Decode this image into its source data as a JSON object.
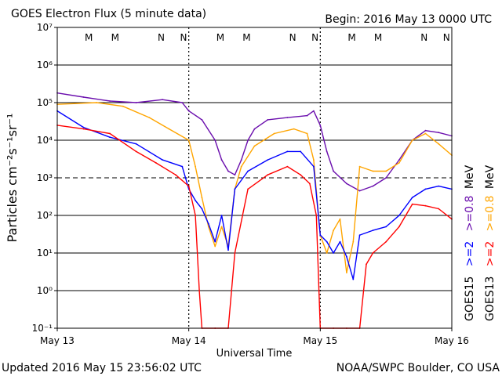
{
  "header": {
    "title": "GOES Electron Flux (5 minute data)",
    "begin": "Begin: 2016 May 13 0000 UTC"
  },
  "footer": {
    "updated": "Updated 2016 May 15 23:56:02 UTC",
    "credit": "NOAA/SWPC Boulder, CO USA"
  },
  "colors": {
    "goes15_08": "#6a0dad",
    "goes13_08": "#ffa500",
    "goes15_2": "#0000ff",
    "goes13_2": "#ff0000",
    "M": "#ff0000",
    "N": "#0000ff"
  },
  "side_labels": {
    "goes15": "GOES15",
    "goes13": "GOES13",
    "goes15_2": ">=2",
    "goes13_2": ">=2",
    "goes15_08": ">=0.8",
    "goes13_08": ">=0.8",
    "unit": "MeV"
  },
  "markers": {
    "m_label": "M",
    "n_label": "N",
    "m_days": [
      0.24,
      0.44,
      1.24,
      1.44,
      2.24,
      2.44
    ],
    "n_days": [
      0.79,
      0.96,
      1.79,
      1.96,
      2.79,
      2.96
    ]
  },
  "chart_data": {
    "type": "line",
    "title": "GOES Electron Flux (5 minute data)",
    "xlabel": "Universal Time",
    "ylabel": "Particles cm⁻²s⁻¹sr⁻¹",
    "y_scale": "log",
    "ylim": [
      0.1,
      10000000
    ],
    "xlim": [
      "May 13",
      "May 16"
    ],
    "x_ticks": [
      "May 13",
      "May 14",
      "May 15",
      "May 16"
    ],
    "y_ticks": [
      "10⁻¹",
      "10⁰",
      "10¹",
      "10²",
      "10³",
      "10⁴",
      "10⁵",
      "10⁶",
      "10⁷"
    ],
    "threshold": 1000,
    "x_unit": "days since May 13 0000 UTC",
    "series": [
      {
        "name": "GOES15 >=0.8 MeV",
        "color": "#6a0dad",
        "points": [
          [
            0,
            180000
          ],
          [
            0.2,
            140000
          ],
          [
            0.4,
            110000
          ],
          [
            0.6,
            100000
          ],
          [
            0.8,
            120000
          ],
          [
            0.95,
            100000
          ],
          [
            1.0,
            60000
          ],
          [
            1.1,
            35000
          ],
          [
            1.2,
            10000
          ],
          [
            1.25,
            3000
          ],
          [
            1.3,
            1500
          ],
          [
            1.35,
            1200
          ],
          [
            1.4,
            3000
          ],
          [
            1.45,
            10000
          ],
          [
            1.5,
            20000
          ],
          [
            1.6,
            35000
          ],
          [
            1.75,
            40000
          ],
          [
            1.9,
            45000
          ],
          [
            1.95,
            60000
          ],
          [
            2.0,
            25000
          ],
          [
            2.05,
            5000
          ],
          [
            2.1,
            1500
          ],
          [
            2.2,
            700
          ],
          [
            2.3,
            450
          ],
          [
            2.4,
            600
          ],
          [
            2.5,
            1000
          ],
          [
            2.6,
            3000
          ],
          [
            2.7,
            10000
          ],
          [
            2.8,
            18000
          ],
          [
            2.9,
            16000
          ],
          [
            3.0,
            13000
          ]
        ]
      },
      {
        "name": "GOES13 >=0.8 MeV",
        "color": "#ffa500",
        "points": [
          [
            0,
            90000
          ],
          [
            0.3,
            100000
          ],
          [
            0.5,
            80000
          ],
          [
            0.7,
            40000
          ],
          [
            0.85,
            20000
          ],
          [
            1.0,
            10000
          ],
          [
            1.05,
            2000
          ],
          [
            1.1,
            300
          ],
          [
            1.15,
            50
          ],
          [
            1.2,
            15
          ],
          [
            1.25,
            50
          ],
          [
            1.3,
            15
          ],
          [
            1.35,
            500
          ],
          [
            1.4,
            2000
          ],
          [
            1.5,
            7000
          ],
          [
            1.65,
            15000
          ],
          [
            1.8,
            20000
          ],
          [
            1.9,
            15000
          ],
          [
            1.95,
            3000
          ],
          [
            2.0,
            30
          ],
          [
            2.05,
            10
          ],
          [
            2.1,
            40
          ],
          [
            2.15,
            80
          ],
          [
            2.2,
            3
          ],
          [
            2.25,
            20
          ],
          [
            2.3,
            2000
          ],
          [
            2.4,
            1500
          ],
          [
            2.5,
            1500
          ],
          [
            2.6,
            2500
          ],
          [
            2.7,
            10000
          ],
          [
            2.8,
            15000
          ],
          [
            2.9,
            8000
          ],
          [
            3.0,
            4000
          ]
        ]
      },
      {
        "name": "GOES15 >=2 MeV",
        "color": "#0000ff",
        "points": [
          [
            0,
            60000
          ],
          [
            0.2,
            22000
          ],
          [
            0.4,
            12000
          ],
          [
            0.6,
            8000
          ],
          [
            0.8,
            3000
          ],
          [
            0.95,
            2000
          ],
          [
            1.0,
            500
          ],
          [
            1.05,
            250
          ],
          [
            1.1,
            150
          ],
          [
            1.15,
            60
          ],
          [
            1.2,
            20
          ],
          [
            1.25,
            100
          ],
          [
            1.3,
            12
          ],
          [
            1.35,
            500
          ],
          [
            1.45,
            1500
          ],
          [
            1.6,
            3000
          ],
          [
            1.75,
            5000
          ],
          [
            1.85,
            5000
          ],
          [
            1.95,
            2000
          ],
          [
            2.0,
            30
          ],
          [
            2.05,
            20
          ],
          [
            2.1,
            10
          ],
          [
            2.15,
            20
          ],
          [
            2.2,
            8
          ],
          [
            2.25,
            2
          ],
          [
            2.3,
            30
          ],
          [
            2.4,
            40
          ],
          [
            2.5,
            50
          ],
          [
            2.6,
            100
          ],
          [
            2.7,
            300
          ],
          [
            2.8,
            500
          ],
          [
            2.9,
            600
          ],
          [
            3.0,
            500
          ]
        ]
      },
      {
        "name": "GOES13 >=2 MeV",
        "color": "#ff0000",
        "points": [
          [
            0,
            25000
          ],
          [
            0.2,
            20000
          ],
          [
            0.4,
            15000
          ],
          [
            0.6,
            5000
          ],
          [
            0.75,
            2500
          ],
          [
            0.9,
            1200
          ],
          [
            1.0,
            600
          ],
          [
            1.05,
            100
          ],
          [
            1.08,
            1
          ],
          [
            1.1,
            0.1
          ],
          [
            1.2,
            0.1
          ],
          [
            1.3,
            0.1
          ],
          [
            1.35,
            10
          ],
          [
            1.45,
            500
          ],
          [
            1.6,
            1200
          ],
          [
            1.75,
            2000
          ],
          [
            1.85,
            1200
          ],
          [
            1.92,
            700
          ],
          [
            1.97,
            100
          ],
          [
            2.0,
            0.1
          ],
          [
            2.1,
            0.1
          ],
          [
            2.2,
            0.1
          ],
          [
            2.3,
            0.1
          ],
          [
            2.35,
            5
          ],
          [
            2.4,
            10
          ],
          [
            2.5,
            20
          ],
          [
            2.6,
            50
          ],
          [
            2.7,
            200
          ],
          [
            2.8,
            180
          ],
          [
            2.9,
            150
          ],
          [
            3.0,
            80
          ]
        ]
      }
    ]
  }
}
